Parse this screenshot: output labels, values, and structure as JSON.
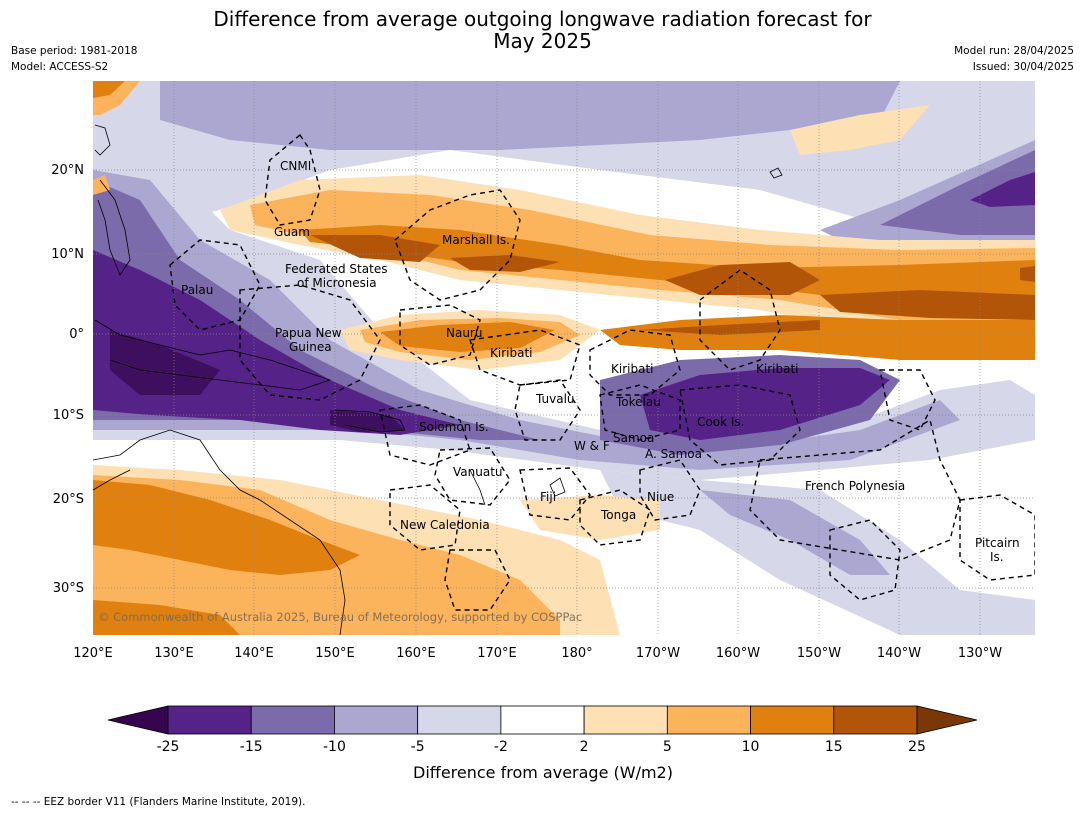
{
  "title_line1": "Difference from average outgoing longwave radiation forecast for",
  "title_line2": "May 2025",
  "meta_left": {
    "base_period": "Base period: 1981-2018",
    "model": "Model: ACCESS-S2"
  },
  "meta_right": {
    "model_run": "Model run: 28/04/2025",
    "issued": "Issued: 30/04/2025"
  },
  "lon_ticks": [
    "120°E",
    "130°E",
    "140°E",
    "150°E",
    "160°E",
    "170°E",
    "180°",
    "170°W",
    "160°W",
    "150°W",
    "140°W",
    "130°W"
  ],
  "lat_ticks": [
    "20°N",
    "10°N",
    "0°",
    "10°S",
    "20°S",
    "30°S"
  ],
  "places": {
    "cnmi": "CNMI",
    "guam": "Guam",
    "marshall": "Marshall Is.",
    "fsm1": "Federated States",
    "fsm2": "of Micronesia",
    "palau": "Palau",
    "png1": "Papua New",
    "png2": "Guinea",
    "nauru": "Nauru",
    "kiribati_w": "Kiribati",
    "kiribati_c": "Kiribati",
    "kiribati_e": "Kiribati",
    "tuvalu": "Tuvalu",
    "tokelau": "Tokelau",
    "cook": "Cook Is.",
    "solomon": "Solomon Is.",
    "wf": "W & F",
    "samoa": "Samoa",
    "asamoa": "A. Samoa",
    "vanuatu": "Vanuatu",
    "fiji": "Fiji",
    "niue": "Niue",
    "tonga": "Tonga",
    "frpoly": "French Polynesia",
    "newcal": "New Caledonia",
    "pitcairn1": "Pitcairn",
    "pitcairn2": "Is."
  },
  "copyright": "© Commonwealth of Australia 2025, Bureau of Meteorology, supported by COSPPac",
  "colorbar": {
    "labels": [
      "-25",
      "-15",
      "-10",
      "-5",
      "-2",
      "2",
      "5",
      "10",
      "15",
      "25"
    ],
    "colors": [
      "#35054f",
      "#552287",
      "#7c6bab",
      "#aca7d0",
      "#d7d7ea",
      "#ffffff",
      "#fde0b4",
      "#fbb35c",
      "#e0800f",
      "#b25509",
      "#7a3806"
    ],
    "label": "Difference from average (W/m2)"
  },
  "footer": "--  --  -- EEZ border V11 (Flanders Marine Institute, 2019)."
}
